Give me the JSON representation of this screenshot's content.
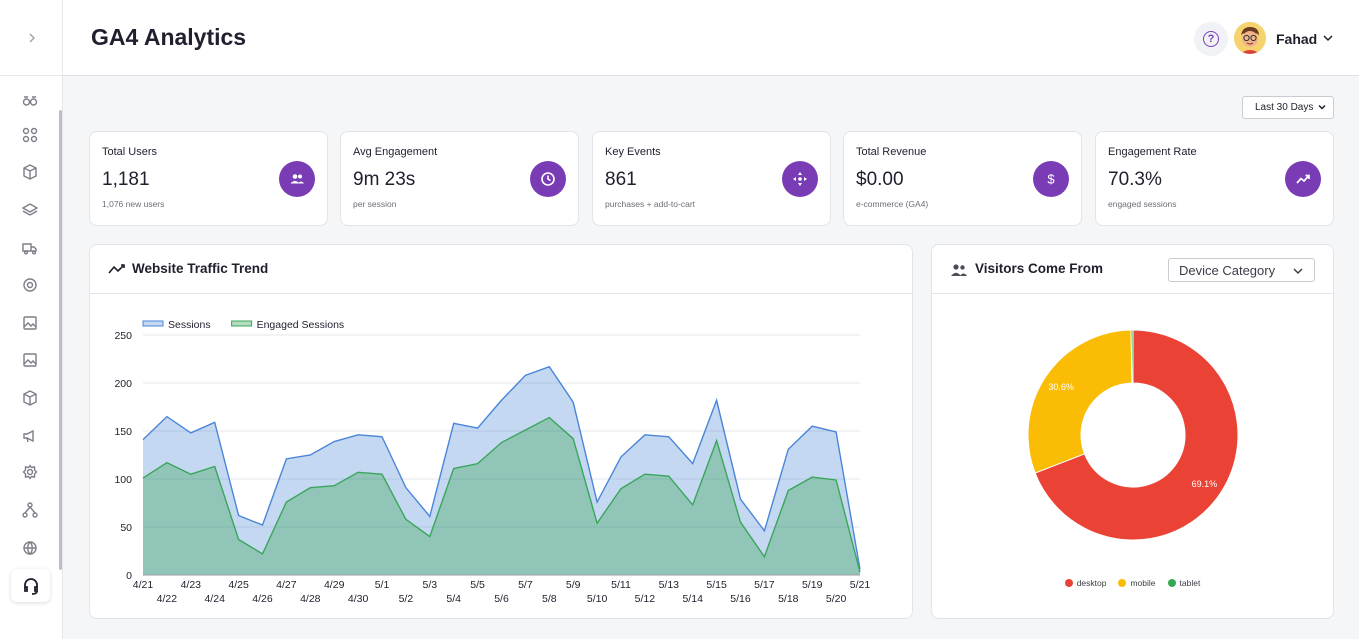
{
  "app": {
    "title": "GA4 Analytics"
  },
  "user": {
    "name": "Fahad"
  },
  "filters": {
    "date_range": "Last 30 Days",
    "device_dimension": "Device Category"
  },
  "kpis": [
    {
      "label": "Total Users",
      "value": "1,181",
      "sub": "1,076 new users",
      "icon": "users-icon"
    },
    {
      "label": "Avg Engagement",
      "value": "9m 23s",
      "sub": "per session",
      "icon": "clock-icon"
    },
    {
      "label": "Key Events",
      "value": "861",
      "sub": "purchases + add-to-cart",
      "icon": "move-icon"
    },
    {
      "label": "Total Revenue",
      "value": "$0.00",
      "sub": "e-commerce (GA4)",
      "icon": "dollar-icon"
    },
    {
      "label": "Engagement Rate",
      "value": "70.3%",
      "sub": "engaged sessions",
      "icon": "trend-icon"
    }
  ],
  "traffic": {
    "title": "Website Traffic Trend"
  },
  "visitors": {
    "title": "Visitors Come From"
  },
  "colors": {
    "accent": "#7a3cb4",
    "sessions": "#4a86d8",
    "engaged": "#3aa65a",
    "desktop": "#ea4335",
    "mobile": "#fbbc05",
    "tablet": "#34a853"
  },
  "chart_data": [
    {
      "type": "area",
      "title": "Website Traffic Trend",
      "x": [
        "4/21",
        "4/22",
        "4/23",
        "4/24",
        "4/25",
        "4/26",
        "4/27",
        "4/28",
        "4/29",
        "4/30",
        "5/1",
        "5/2",
        "5/3",
        "5/4",
        "5/5",
        "5/6",
        "5/7",
        "5/8",
        "5/9",
        "5/10",
        "5/11",
        "5/12",
        "5/13",
        "5/14",
        "5/15",
        "5/16",
        "5/17",
        "5/18",
        "5/19",
        "5/20",
        "5/21"
      ],
      "yticks": [
        0,
        50,
        100,
        150,
        200,
        250
      ],
      "ylim": [
        0,
        250
      ],
      "legend_position": "top-left",
      "series": [
        {
          "name": "Sessions",
          "values": [
            141,
            165,
            148,
            159,
            62,
            52,
            121,
            125,
            139,
            146,
            144,
            91,
            61,
            158,
            153,
            182,
            208,
            217,
            180,
            76,
            123,
            146,
            144,
            116,
            182,
            79,
            46,
            131,
            155,
            149,
            6
          ]
        },
        {
          "name": "Engaged Sessions",
          "values": [
            101,
            117,
            105,
            113,
            37,
            22,
            76,
            91,
            93,
            107,
            105,
            58,
            40,
            111,
            116,
            138,
            151,
            164,
            142,
            54,
            90,
            105,
            103,
            73,
            140,
            55,
            19,
            88,
            102,
            99,
            3
          ]
        }
      ]
    },
    {
      "type": "pie",
      "title": "Visitors Come From",
      "categories": [
        "desktop",
        "mobile",
        "tablet"
      ],
      "values": [
        69.1,
        30.6,
        0.3
      ],
      "labels": [
        "69.1%",
        "30.6%",
        ""
      ],
      "legend_position": "bottom"
    }
  ]
}
